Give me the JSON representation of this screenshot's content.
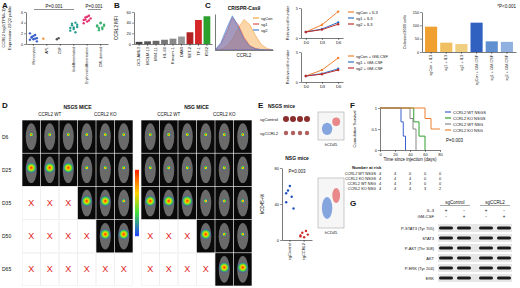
{
  "chart_data": [
    {
      "type": "scatter",
      "annotations": [
        "A",
        "P=0.001",
        "P=0.001"
      ],
      "ylabel": [
        "CCRL2 log2(TPM+1)",
        "Expression 22Q2 public"
      ],
      "categories": [
        "Monocytes",
        "APL",
        "CBF",
        "Undifferentiated",
        "Erythroid differentiation",
        "CML derived"
      ],
      "values": [
        [
          0.8,
          1.2,
          1.5,
          1.0,
          0.5,
          2.0,
          1.3,
          0.9,
          1.7,
          1.1
        ],
        [
          1.0
        ],
        [
          0.9,
          1.1
        ],
        [
          3.0,
          3.5,
          2.8,
          4.0,
          3.2,
          2.5,
          3.8,
          3.1,
          2.2,
          3.6
        ],
        [
          4.5,
          5.0,
          4.2,
          5.3,
          4.8,
          3.9,
          4.6,
          5.1,
          4.4
        ],
        [
          3.5,
          3.0,
          4.0,
          2.8,
          3.6,
          3.3,
          2.6,
          3.9,
          3.1,
          3.4
        ]
      ],
      "colors": [
        "#3a5fcd",
        "#f28e2b",
        "#555555",
        "#2a9d8f",
        "#e3306f",
        "#3cb371"
      ],
      "ylim": [
        0,
        6
      ],
      "yticks": [
        0,
        2,
        4,
        6
      ]
    },
    {
      "type": "bar",
      "annotations": [
        "B"
      ],
      "ylabel": "CCRL2 MFI",
      "categories": [
        "OCI-AML3",
        "MOLM-13",
        "MV4-11",
        "HL-60",
        "Kasumi-1",
        "DAMI",
        "SET-2",
        "TF-1",
        "K562"
      ],
      "values": [
        4,
        5,
        6,
        8,
        10,
        14,
        22,
        45,
        52
      ],
      "colors": [
        "#444444",
        "#555555",
        "#666666",
        "#777777",
        "#888888",
        "#999999",
        "#b22222",
        "#d62728",
        "#2ca02c"
      ],
      "ylim": [
        0,
        60
      ],
      "yticks": [
        0,
        20,
        40,
        60
      ]
    },
    {
      "type": "area",
      "annotations": [
        "C"
      ],
      "title": "CRISPR-Cas9",
      "xlabel": "CCRL2",
      "x": [
        0,
        1,
        2,
        3,
        4,
        5,
        6,
        7,
        8,
        9,
        10
      ],
      "series": [
        {
          "name": "sgCon",
          "color": "#f4a340",
          "values": [
            0,
            2,
            10,
            30,
            60,
            85,
            70,
            40,
            15,
            4,
            0
          ]
        },
        {
          "name": "sg1",
          "color": "#e05050",
          "values": [
            0,
            15,
            50,
            90,
            70,
            35,
            12,
            4,
            1,
            0,
            0
          ]
        },
        {
          "name": "sg2",
          "color": "#4a7fd0",
          "values": [
            0,
            20,
            60,
            95,
            65,
            30,
            10,
            3,
            1,
            0,
            0
          ]
        }
      ],
      "xlim": [
        0,
        10
      ],
      "ylim": [
        0,
        100
      ],
      "tick_labels": false,
      "legend": "top-right"
    },
    {
      "type": "line",
      "ylabel": "Relative cell number",
      "categories": [
        "D0",
        "D3",
        "D6"
      ],
      "series": [
        {
          "name": "sgCon + IL3",
          "color": "#f08030",
          "values": [
            1,
            2.2,
            4.4
          ]
        },
        {
          "name": "sg1 + IL3",
          "color": "#3070c0",
          "values": [
            1,
            1.5,
            2.6
          ]
        },
        {
          "name": "sg2 + IL3",
          "color": "#c03030",
          "values": [
            1,
            1.4,
            2.3
          ]
        }
      ],
      "ylim": [
        0,
        5
      ],
      "yticks": [
        0,
        5
      ],
      "legend": "right",
      "marker": "circle"
    },
    {
      "type": "line",
      "ylabel": "Relative cell number",
      "categories": [
        "D0",
        "D3",
        "D6"
      ],
      "series": [
        {
          "name": "sgCon + GM-CSF",
          "color": "#f08030",
          "values": [
            1,
            2.0,
            4.0
          ]
        },
        {
          "name": "sg1 + GM-CSF",
          "color": "#3070c0",
          "values": [
            1,
            1.4,
            2.2
          ]
        },
        {
          "name": "sg2 + GM-CSF",
          "color": "#c03030",
          "values": [
            1,
            1.3,
            2.0
          ]
        }
      ],
      "ylim": [
        0,
        5
      ],
      "yticks": [
        0,
        5
      ],
      "legend": "right",
      "marker": "circle"
    },
    {
      "type": "bar",
      "annotations": [
        "*P<0.001"
      ],
      "ylabel": "Colonies/2000 cells",
      "categories": [
        "sgCon + IL3",
        "sg1 + IL3",
        "sg2 + IL3",
        "sgCon + GM-CSF",
        "sg1 + GM-CSF",
        "sg2 + GM-CSF"
      ],
      "values": [
        95,
        35,
        30,
        110,
        40,
        38
      ],
      "colors": [
        "#f0a030",
        "#f0c060",
        "#f0d080",
        "#3060c0",
        "#6090d0",
        "#90b0e0"
      ],
      "ylim": [
        0,
        150
      ],
      "yticks": [
        0,
        50,
        100,
        150
      ]
    },
    {
      "type": "scatter",
      "title": "NSG mice",
      "annotations": [
        "P=0.003"
      ],
      "ylabel": "hCD45+%",
      "categories": [
        "sgControl",
        "sgCCRL2"
      ],
      "values": [
        [
          42,
          55,
          60,
          48,
          35,
          52
        ],
        [
          5,
          8,
          3,
          10,
          6,
          4
        ]
      ],
      "colors": [
        "#1f4fbf",
        "#d62728"
      ],
      "ylim": [
        0,
        80
      ],
      "yticks": [
        0,
        40,
        80
      ]
    },
    {
      "type": "line",
      "annotations": [
        "F",
        "P=0.003"
      ],
      "xlabel": "Time since injection (days)",
      "ylabel": "Cumulative Survival",
      "series": [
        {
          "name": "CCRL2 WT NSGS",
          "color": "#3a5fcd",
          "x": [
            0,
            28,
            31,
            34
          ],
          "values": [
            1,
            0.67,
            0.33,
            0
          ]
        },
        {
          "name": "CCRL2 KO NSGS",
          "color": "#2ca02c",
          "x": [
            0,
            45,
            52,
            60
          ],
          "values": [
            1,
            0.67,
            0.33,
            0
          ]
        },
        {
          "name": "CCRL2 WT NSG",
          "color": "#888888",
          "x": [
            0,
            40,
            44,
            48
          ],
          "values": [
            1,
            0.75,
            0.5,
            0
          ]
        },
        {
          "name": "CCRL2 KO NSG",
          "color": "#f08030",
          "x": [
            0,
            60,
            68,
            80
          ],
          "values": [
            1,
            0.75,
            0.5,
            0.5
          ]
        }
      ],
      "xlim": [
        0,
        80
      ],
      "xticks": [
        0,
        20,
        40,
        60,
        80
      ],
      "ylim": [
        0,
        1
      ],
      "yticks": [
        0,
        0.5,
        1
      ],
      "legend": "right",
      "line_style": "step"
    }
  ],
  "panel_d": {
    "label": "D",
    "groups": [
      "NSGS MICE",
      "NSG MICE"
    ],
    "subgroups": [
      "CCRL2 WT",
      "CCRL2 KO",
      "CCRL2 WT",
      "CCRL2 KO"
    ],
    "days": [
      "D6",
      "D25",
      "D35",
      "D50",
      "D65"
    ],
    "grid": [
      [
        "s",
        "s",
        "s",
        "s",
        "s",
        "s",
        "s",
        "s",
        "s",
        "s",
        "s",
        "s"
      ],
      [
        "L",
        "L",
        "L",
        "s",
        "s",
        "s",
        "s",
        "s",
        "s",
        "s",
        "s",
        "s"
      ],
      [
        "X",
        "X",
        "X",
        "L",
        "L",
        "s",
        "L",
        "L",
        "L",
        "s",
        "s",
        "s"
      ],
      [
        "X",
        "X",
        "X",
        "X",
        "L",
        "L",
        "X",
        "X",
        "X",
        "L",
        "s",
        "s"
      ],
      [
        "X",
        "X",
        "X",
        "X",
        "X",
        "X",
        "X",
        "X",
        "X",
        "X",
        "L",
        "L"
      ]
    ]
  },
  "panel_e": {
    "label": "E",
    "title": "NSGS mice",
    "images": [
      "sgControl",
      "sgCCRL2"
    ],
    "flow_label": "hCD45"
  },
  "panel_f_table": {
    "title": "Number at risk",
    "rows": [
      {
        "name": "CCRL2 WT NSGS",
        "counts": [
          4,
          4,
          0,
          0,
          0
        ]
      },
      {
        "name": "CCRL2 KO NSGS",
        "counts": [
          4,
          4,
          4,
          0,
          0
        ]
      },
      {
        "name": "CCRL2 WT NSG",
        "counts": [
          4,
          4,
          3,
          0,
          0
        ]
      },
      {
        "name": "CCRL2 KO NSG",
        "counts": [
          4,
          4,
          4,
          3,
          2
        ]
      }
    ]
  },
  "panel_g": {
    "label": "G",
    "columns": [
      "sgControl",
      "sgCCRL2"
    ],
    "treatments": [
      {
        "name": "IL-3",
        "signs": [
          "+",
          "-",
          "+",
          "-"
        ]
      },
      {
        "name": "GM-CSF",
        "signs": [
          "-",
          "+",
          "-",
          "+"
        ]
      }
    ],
    "rows": [
      "P-STAT3 (Tyr 705)",
      "STAT3",
      "P-AKT (Thr 308)",
      "AKT",
      "P-ERK (Tyr 204)",
      "ERK"
    ]
  }
}
